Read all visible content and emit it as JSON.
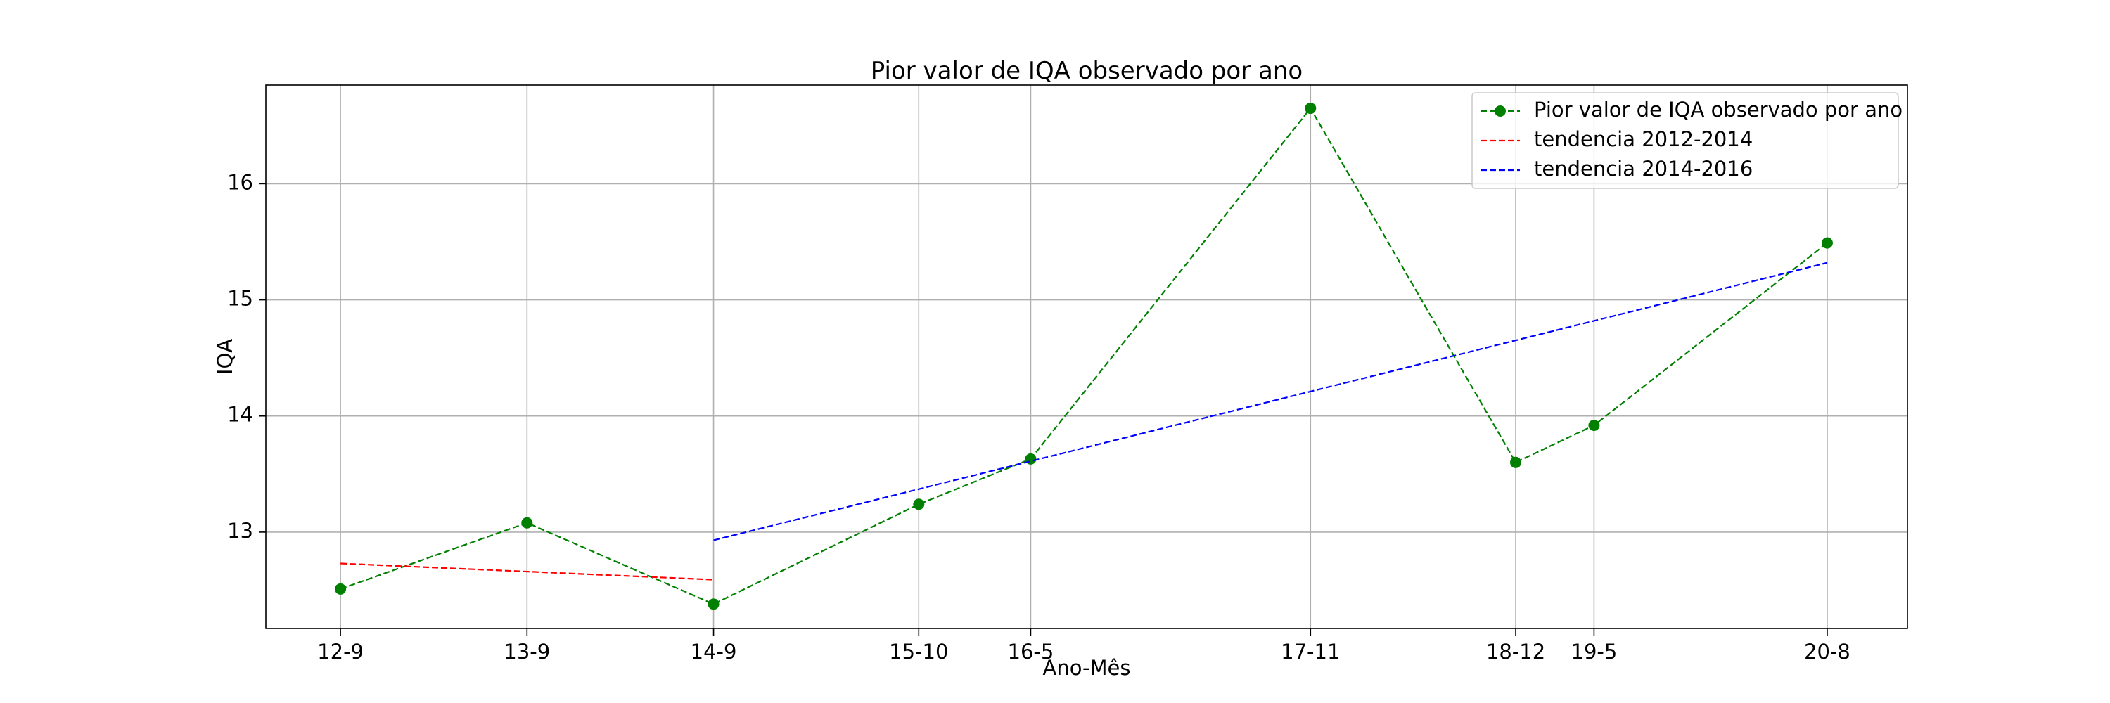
{
  "chart_data": {
    "type": "line",
    "title": "Pior valor de IQA observado por ano",
    "xlabel": "Ano-Mês",
    "ylabel": "IQA",
    "grid": true,
    "legend_position": "top-right",
    "x_positions": [
      0,
      1,
      2,
      3.1,
      3.7,
      5.2,
      6.3,
      6.72,
      7.97
    ],
    "x_tick_labels": [
      "12-9",
      "13-9",
      "14-9",
      "15-10",
      "16-5",
      "17-11",
      "18-12",
      "19-5",
      "20-8"
    ],
    "xlim": [
      -0.4,
      8.4
    ],
    "ylim": [
      12.17,
      16.85
    ],
    "y_ticks": [
      13,
      14,
      15,
      16
    ],
    "series": [
      {
        "name": "Pior valor de IQA observado por ano",
        "color": "#008000",
        "style": "dashed-markers",
        "x": [
          0,
          1,
          2,
          3.1,
          3.7,
          5.2,
          6.3,
          6.72,
          7.97
        ],
        "y": [
          12.51,
          13.08,
          12.38,
          13.24,
          13.63,
          16.65,
          13.6,
          13.92,
          15.49
        ]
      },
      {
        "name": "tendencia 2012-2014",
        "color": "#ff0000",
        "style": "dashed",
        "x": [
          0,
          2
        ],
        "y": [
          12.73,
          12.59
        ]
      },
      {
        "name": "tendencia 2014-2016",
        "color": "#0000ff",
        "style": "dashed",
        "x": [
          2,
          7.97
        ],
        "y": [
          12.93,
          15.32
        ]
      }
    ]
  }
}
